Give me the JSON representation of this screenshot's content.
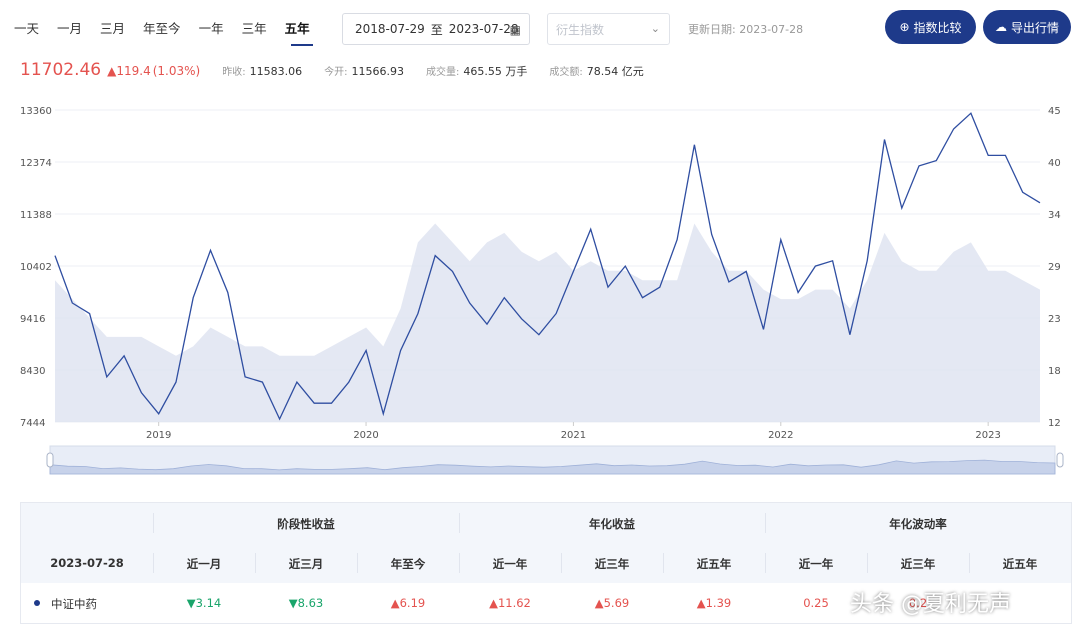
{
  "periods": [
    "一天",
    "一月",
    "三月",
    "年至今",
    "一年",
    "三年",
    "五年"
  ],
  "active_period": "五年",
  "date_range": {
    "start": "2018-07-29",
    "separator": "至",
    "end": "2023-07-28"
  },
  "derived_index": {
    "placeholder": "衍生指数"
  },
  "update_info": "更新日期: 2023-07-28",
  "buttons": {
    "compare": "指数比较",
    "export": "导出行情"
  },
  "quote": {
    "last": "11702.46",
    "change": "▲119.4",
    "change_pct": "(1.03%)",
    "prev_close_label": "昨收:",
    "prev_close": "11583.06",
    "open_label": "今开:",
    "open": "11566.93",
    "volume_label": "成交量:",
    "volume": "465.55 万手",
    "turnover_label": "成交额:",
    "turnover": "78.54 亿元"
  },
  "colors": {
    "accent": "#1e3a8a",
    "up": "#e4534f",
    "down": "#1aa56b",
    "line": "#2f4ea1",
    "area": "#dfe4f1"
  },
  "chart_data": {
    "type": "line",
    "series": [
      {
        "name": "",
        "axis": "left",
        "style": "line",
        "values": [
          10600,
          9700,
          9500,
          8300,
          8700,
          8000,
          7600,
          8200,
          9800,
          10700,
          9900,
          8300,
          8200,
          7500,
          8200,
          7800,
          7800,
          8200,
          8800,
          7600,
          8800,
          9500,
          10600,
          10300,
          9700,
          9300,
          9800,
          9400,
          9100,
          9500,
          10300,
          11100,
          10000,
          10400,
          9800,
          10000,
          10900,
          12700,
          11000,
          10100,
          10300,
          9200,
          10900,
          9900,
          10400,
          10500,
          9100,
          10500,
          12800,
          11500,
          12300,
          12400,
          13000,
          13300,
          12500,
          12500,
          11800,
          11600
        ]
      },
      {
        "name": "",
        "axis": "right",
        "style": "area",
        "values": [
          27,
          25,
          23,
          21,
          21,
          21,
          20,
          19,
          20,
          22,
          21,
          20,
          20,
          19,
          19,
          19,
          20,
          21,
          22,
          20,
          24,
          31,
          33,
          31,
          29,
          31,
          32,
          30,
          29,
          30,
          28,
          29,
          28,
          28,
          27,
          27,
          27,
          33,
          30,
          28,
          28,
          26,
          25,
          25,
          26,
          26,
          24,
          27,
          32,
          29,
          28,
          28,
          30,
          31,
          28,
          28,
          27,
          26
        ]
      }
    ],
    "x": [
      "2018-07",
      "2018-08",
      "2018-09",
      "2018-10",
      "2018-11",
      "2018-12",
      "2019-01",
      "2019-02",
      "2019-03",
      "2019-04",
      "2019-05",
      "2019-06",
      "2019-07",
      "2019-08",
      "2019-09",
      "2019-10",
      "2019-11",
      "2019-12",
      "2020-01",
      "2020-02",
      "2020-03",
      "2020-04",
      "2020-05",
      "2020-06",
      "2020-07",
      "2020-08",
      "2020-09",
      "2020-10",
      "2020-11",
      "2020-12",
      "2021-01",
      "2021-02",
      "2021-03",
      "2021-04",
      "2021-05",
      "2021-06",
      "2021-07",
      "2021-08",
      "2021-09",
      "2021-10",
      "2021-11",
      "2021-12",
      "2022-01",
      "2022-02",
      "2022-03",
      "2022-04",
      "2022-05",
      "2022-06",
      "2022-07",
      "2022-08",
      "2022-09",
      "2022-10",
      "2022-11",
      "2022-12",
      "2023-01",
      "2023-02",
      "2023-03",
      "2023-07"
    ],
    "x_ticks": [
      "2019",
      "2020",
      "2021",
      "2022",
      "2023"
    ],
    "y_ticks_left": [
      "13360",
      "12374",
      "11388",
      "10402",
      "9416",
      "8430",
      "7444"
    ],
    "y_ticks_right": [
      "45",
      "40",
      "34",
      "29",
      "23",
      "18",
      "12"
    ],
    "ylim_left": [
      7444,
      13360
    ],
    "ylim_right": [
      12,
      45
    ],
    "grid": true,
    "title": ""
  },
  "table": {
    "group_headers": [
      "阶段性收益",
      "年化收益",
      "年化波动率"
    ],
    "date": "2023-07-28",
    "columns": [
      "近一月",
      "近三月",
      "年至今",
      "近一年",
      "近三年",
      "近五年",
      "近一年",
      "近三年",
      "近五年"
    ],
    "rows": [
      {
        "name": "中证中药",
        "values": [
          {
            "text": "▼3.14",
            "dir": "down"
          },
          {
            "text": "▼8.63",
            "dir": "down"
          },
          {
            "text": "▲6.19",
            "dir": "up"
          },
          {
            "text": "▲11.62",
            "dir": "up"
          },
          {
            "text": "▲5.69",
            "dir": "up"
          },
          {
            "text": "▲1.39",
            "dir": "up"
          },
          {
            "text": "0.25",
            "dir": "up"
          },
          {
            "text": "0.2",
            "dir": "up"
          },
          {
            "text": "",
            "dir": "up"
          }
        ]
      }
    ]
  },
  "watermark": "头条 @夏利无声"
}
